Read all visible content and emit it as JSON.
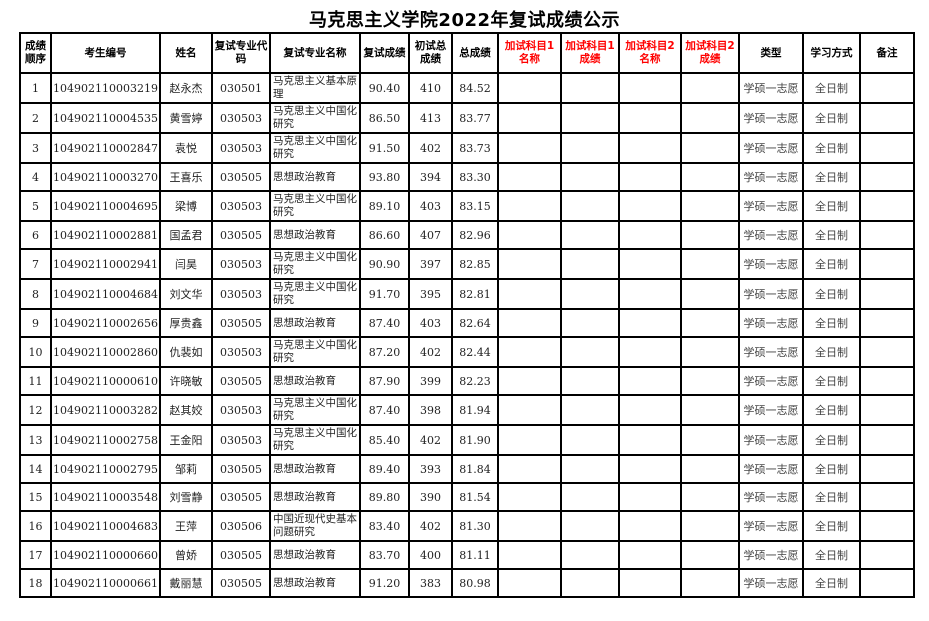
{
  "title": "马克思主义学院2022年复试成绩公示",
  "columns": [
    "成绩顺序",
    "考生编号",
    "姓名",
    "复试专业代码",
    "复试专业名称",
    "复试成绩",
    "初试总成绩",
    "总成绩",
    "加试科目1名称",
    "加试科目1成绩",
    "加试科目2名称",
    "加试科目2成绩",
    "类型",
    "学习方式",
    "备注"
  ],
  "highlight_color": "#ff0000",
  "rows": [
    {
      "rank": "1",
      "id": "104902110003219",
      "name": "赵永杰",
      "code": "030501",
      "major": "马克思主义基本原理",
      "retest": "90.40",
      "initial": "410",
      "total": "84.52",
      "type": "学硕一志愿",
      "mode": "全日制"
    },
    {
      "rank": "2",
      "id": "104902110004535",
      "name": "黄雪婷",
      "code": "030503",
      "major": "马克思主义中国化研究",
      "retest": "86.50",
      "initial": "413",
      "total": "83.77",
      "type": "学硕一志愿",
      "mode": "全日制"
    },
    {
      "rank": "3",
      "id": "104902110002847",
      "name": "袁悦",
      "code": "030503",
      "major": "马克思主义中国化研究",
      "retest": "91.50",
      "initial": "402",
      "total": "83.73",
      "type": "学硕一志愿",
      "mode": "全日制"
    },
    {
      "rank": "4",
      "id": "104902110003270",
      "name": "王喜乐",
      "code": "030505",
      "major": "思想政治教育",
      "retest": "93.80",
      "initial": "394",
      "total": "83.30",
      "type": "学硕一志愿",
      "mode": "全日制"
    },
    {
      "rank": "5",
      "id": "104902110004695",
      "name": "梁博",
      "code": "030503",
      "major": "马克思主义中国化研究",
      "retest": "89.10",
      "initial": "403",
      "total": "83.15",
      "type": "学硕一志愿",
      "mode": "全日制"
    },
    {
      "rank": "6",
      "id": "104902110002881",
      "name": "国孟君",
      "code": "030505",
      "major": "思想政治教育",
      "retest": "86.60",
      "initial": "407",
      "total": "82.96",
      "type": "学硕一志愿",
      "mode": "全日制"
    },
    {
      "rank": "7",
      "id": "104902110002941",
      "name": "闫昊",
      "code": "030503",
      "major": "马克思主义中国化研究",
      "retest": "90.90",
      "initial": "397",
      "total": "82.85",
      "type": "学硕一志愿",
      "mode": "全日制"
    },
    {
      "rank": "8",
      "id": "104902110004684",
      "name": "刘文华",
      "code": "030503",
      "major": "马克思主义中国化研究",
      "retest": "91.70",
      "initial": "395",
      "total": "82.81",
      "type": "学硕一志愿",
      "mode": "全日制"
    },
    {
      "rank": "9",
      "id": "104902110002656",
      "name": "厚贵鑫",
      "code": "030505",
      "major": "思想政治教育",
      "retest": "87.40",
      "initial": "403",
      "total": "82.64",
      "type": "学硕一志愿",
      "mode": "全日制"
    },
    {
      "rank": "10",
      "id": "104902110002860",
      "name": "仇裴如",
      "code": "030503",
      "major": "马克思主义中国化研究",
      "retest": "87.20",
      "initial": "402",
      "total": "82.44",
      "type": "学硕一志愿",
      "mode": "全日制"
    },
    {
      "rank": "11",
      "id": "104902110000610",
      "name": "许晓敏",
      "code": "030505",
      "major": "思想政治教育",
      "retest": "87.90",
      "initial": "399",
      "total": "82.23",
      "type": "学硕一志愿",
      "mode": "全日制"
    },
    {
      "rank": "12",
      "id": "104902110003282",
      "name": "赵其姣",
      "code": "030503",
      "major": "马克思主义中国化研究",
      "retest": "87.40",
      "initial": "398",
      "total": "81.94",
      "type": "学硕一志愿",
      "mode": "全日制"
    },
    {
      "rank": "13",
      "id": "104902110002758",
      "name": "王金阳",
      "code": "030503",
      "major": "马克思主义中国化研究",
      "retest": "85.40",
      "initial": "402",
      "total": "81.90",
      "type": "学硕一志愿",
      "mode": "全日制"
    },
    {
      "rank": "14",
      "id": "104902110002795",
      "name": "邹莉",
      "code": "030505",
      "major": "思想政治教育",
      "retest": "89.40",
      "initial": "393",
      "total": "81.84",
      "type": "学硕一志愿",
      "mode": "全日制"
    },
    {
      "rank": "15",
      "id": "104902110003548",
      "name": "刘雪静",
      "code": "030505",
      "major": "思想政治教育",
      "retest": "89.80",
      "initial": "390",
      "total": "81.54",
      "type": "学硕一志愿",
      "mode": "全日制"
    },
    {
      "rank": "16",
      "id": "104902110004683",
      "name": "王萍",
      "code": "030506",
      "major": "中国近现代史基本问题研究",
      "retest": "83.40",
      "initial": "402",
      "total": "81.30",
      "type": "学硕一志愿",
      "mode": "全日制"
    },
    {
      "rank": "17",
      "id": "104902110000660",
      "name": "曾娇",
      "code": "030505",
      "major": "思想政治教育",
      "retest": "83.70",
      "initial": "400",
      "total": "81.11",
      "type": "学硕一志愿",
      "mode": "全日制"
    },
    {
      "rank": "18",
      "id": "104902110000661",
      "name": "戴丽慧",
      "code": "030505",
      "major": "思想政治教育",
      "retest": "91.20",
      "initial": "383",
      "total": "80.98",
      "type": "学硕一志愿",
      "mode": "全日制"
    }
  ]
}
